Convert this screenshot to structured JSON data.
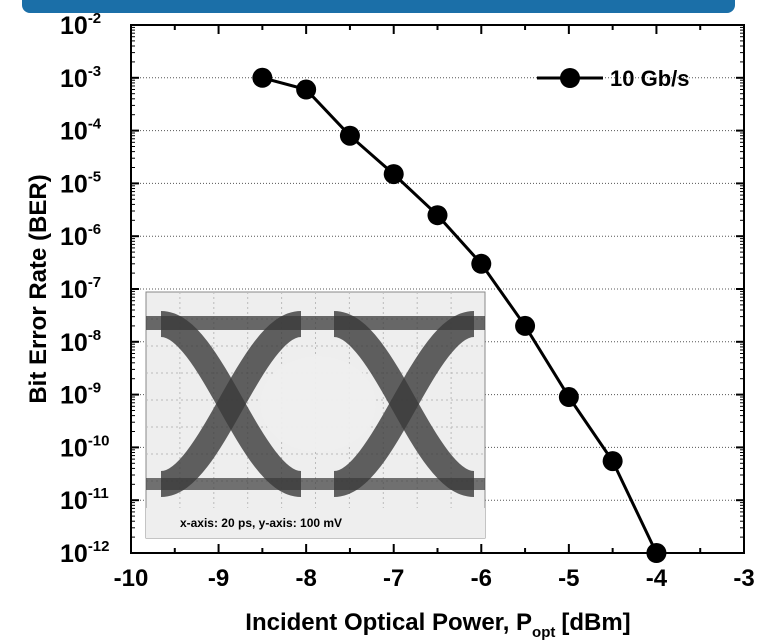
{
  "chart_data": {
    "type": "line",
    "xlabel_main": "Incident Optical Power, P",
    "xlabel_sub": "opt",
    "xlabel_unit": "[dBm]",
    "ylabel": "Bit Error Rate (BER)",
    "xlim": [
      -10,
      -3
    ],
    "ylim_log10": [
      -12,
      -2
    ],
    "y_scale": "log",
    "x_ticks": [
      "-10",
      "-9",
      "-8",
      "-7",
      "-6",
      "-5",
      "-4",
      "-3"
    ],
    "y_ticks": [
      {
        "base": "10",
        "exp": "-2"
      },
      {
        "base": "10",
        "exp": "-3"
      },
      {
        "base": "10",
        "exp": "-4"
      },
      {
        "base": "10",
        "exp": "-5"
      },
      {
        "base": "10",
        "exp": "-6"
      },
      {
        "base": "10",
        "exp": "-7"
      },
      {
        "base": "10",
        "exp": "-8"
      },
      {
        "base": "10",
        "exp": "-9"
      },
      {
        "base": "10",
        "exp": "-10"
      },
      {
        "base": "10",
        "exp": "-11"
      },
      {
        "base": "10",
        "exp": "-12"
      }
    ],
    "grid": "horizontal dotted",
    "legend_position": "top-right",
    "series": [
      {
        "name": "10 Gb/s",
        "color": "#000000",
        "marker": "circle-filled",
        "x": [
          -8.5,
          -8.0,
          -7.5,
          -7.0,
          -6.5,
          -6.0,
          -5.5,
          -5.0,
          -4.5,
          -4.0
        ],
        "y": [
          0.001,
          0.0006,
          8e-05,
          1.5e-05,
          2.5e-06,
          3e-07,
          2e-08,
          9e-10,
          5.5e-11,
          1e-12
        ]
      }
    ],
    "inset": {
      "type": "eye-diagram image",
      "caption": "x-axis: 20 ps, y-axis: 100 mV"
    }
  },
  "colors": {
    "top_bar": "#1b6fa8",
    "grid": "#555555",
    "eye_background": "#eeeeee",
    "eye_trace": "#3a3a3a"
  }
}
